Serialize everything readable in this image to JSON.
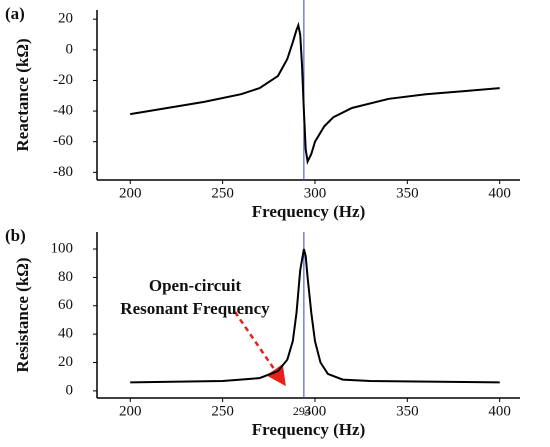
{
  "chart_data": [
    {
      "type": "line",
      "panel": "(a)",
      "ylabel": "Reactance (kΩ)",
      "xlabel": "Frequency (Hz)",
      "x": [
        200,
        220,
        240,
        260,
        270,
        280,
        285,
        288,
        290,
        291,
        292,
        293,
        294,
        295,
        296,
        298,
        300,
        305,
        310,
        320,
        340,
        360,
        380,
        400
      ],
      "values": [
        -42,
        -38,
        -34,
        -29,
        -25,
        -17,
        -6,
        5,
        13,
        16,
        10,
        -10,
        -40,
        -65,
        -73,
        -68,
        -60,
        -50,
        -44,
        -38,
        -32,
        -29,
        -27,
        -25
      ],
      "color": "#000000",
      "xlim": [
        182,
        411
      ],
      "ylim": [
        -85,
        26
      ],
      "xticks": [
        200,
        250,
        300,
        350,
        400
      ],
      "yticks": [
        20,
        0,
        -20,
        -40,
        -60,
        -80
      ],
      "vline": 294,
      "vline_color": "#3344cc"
    },
    {
      "type": "line",
      "panel": "(b)",
      "ylabel": "Resistance (kΩ)",
      "xlabel": "Frequency (Hz)",
      "x": [
        200,
        250,
        270,
        280,
        285,
        288,
        290,
        292,
        294,
        295,
        296,
        298,
        300,
        303,
        307,
        315,
        330,
        400
      ],
      "values": [
        6,
        7,
        9,
        14,
        22,
        35,
        55,
        85,
        100,
        95,
        80,
        55,
        35,
        20,
        12,
        8,
        7,
        6
      ],
      "color": "#000000",
      "xlim": [
        182,
        411
      ],
      "ylim": [
        -5,
        112
      ],
      "xticks": [
        200,
        250,
        300,
        350,
        400
      ],
      "yticks": [
        0,
        20,
        40,
        60,
        80,
        100
      ],
      "vline": 294,
      "vline_color": "#3344cc",
      "vline_label": 294,
      "annotation": [
        "Open-circuit",
        "Resonant Frequency"
      ]
    }
  ]
}
